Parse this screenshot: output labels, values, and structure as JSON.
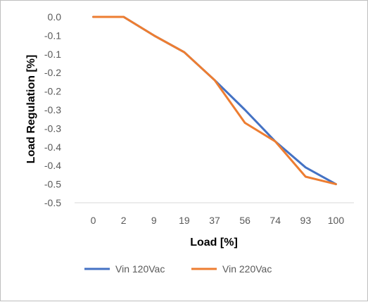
{
  "chart_data": {
    "type": "line",
    "title": "",
    "xlabel": "Load [%]",
    "ylabel": "Load Regulation [%]",
    "categories": [
      "0",
      "2",
      "9",
      "19",
      "37",
      "56",
      "74",
      "93",
      "100"
    ],
    "y_tick_labels": [
      "0.0",
      "-0.1",
      "-0.1",
      "-0.2",
      "-0.2",
      "-0.3",
      "-0.3",
      "-0.4",
      "-0.4",
      "-0.5",
      "-0.5"
    ],
    "ylim": [
      -0.5,
      0.0
    ],
    "grid": false,
    "legend_position": "bottom",
    "series": [
      {
        "name": "Vin 120Vac",
        "color": "#4472C4",
        "values": [
          0.0,
          0.0,
          -0.05,
          -0.095,
          -0.17,
          -0.25,
          -0.335,
          -0.405,
          -0.45
        ]
      },
      {
        "name": "Vin 220Vac",
        "color": "#ED7D31",
        "values": [
          0.0,
          0.0,
          -0.05,
          -0.095,
          -0.17,
          -0.285,
          -0.335,
          -0.43,
          -0.45
        ]
      }
    ]
  }
}
